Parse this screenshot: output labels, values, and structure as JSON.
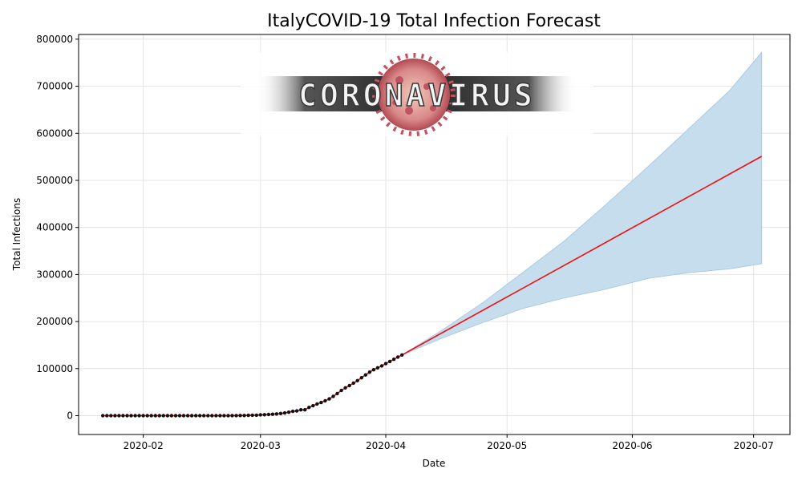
{
  "chart_data": {
    "type": "line",
    "title": "ItalyCOVID-19 Total Infection Forecast",
    "xlabel": "Date",
    "ylabel": "Total Infections",
    "x_range": [
      "2020-01-16",
      "2020-07-10"
    ],
    "ylim": [
      -40000,
      810000
    ],
    "x_ticks": [
      "2020-02-01",
      "2020-03-01",
      "2020-04-01",
      "2020-05-01",
      "2020-06-01",
      "2020-07-01"
    ],
    "x_tick_labels": [
      "2020-02",
      "2020-03",
      "2020-04",
      "2020-05",
      "2020-06",
      "2020-07"
    ],
    "y_ticks": [
      0,
      100000,
      200000,
      300000,
      400000,
      500000,
      600000,
      700000,
      800000
    ],
    "y_tick_labels": [
      "0",
      "100000",
      "200000",
      "300000",
      "400000",
      "500000",
      "600000",
      "700000",
      "800000"
    ],
    "grid": true,
    "observed": {
      "dates": [
        "2020-01-22",
        "2020-01-23",
        "2020-01-24",
        "2020-01-25",
        "2020-01-26",
        "2020-01-27",
        "2020-01-28",
        "2020-01-29",
        "2020-01-30",
        "2020-01-31",
        "2020-02-01",
        "2020-02-02",
        "2020-02-03",
        "2020-02-04",
        "2020-02-05",
        "2020-02-06",
        "2020-02-07",
        "2020-02-08",
        "2020-02-09",
        "2020-02-10",
        "2020-02-11",
        "2020-02-12",
        "2020-02-13",
        "2020-02-14",
        "2020-02-15",
        "2020-02-16",
        "2020-02-17",
        "2020-02-18",
        "2020-02-19",
        "2020-02-20",
        "2020-02-21",
        "2020-02-22",
        "2020-02-23",
        "2020-02-24",
        "2020-02-25",
        "2020-02-26",
        "2020-02-27",
        "2020-02-28",
        "2020-02-29",
        "2020-03-01",
        "2020-03-02",
        "2020-03-03",
        "2020-03-04",
        "2020-03-05",
        "2020-03-06",
        "2020-03-07",
        "2020-03-08",
        "2020-03-09",
        "2020-03-10",
        "2020-03-11",
        "2020-03-12",
        "2020-03-13",
        "2020-03-14",
        "2020-03-15",
        "2020-03-16",
        "2020-03-17",
        "2020-03-18",
        "2020-03-19",
        "2020-03-20",
        "2020-03-21",
        "2020-03-22",
        "2020-03-23",
        "2020-03-24",
        "2020-03-25",
        "2020-03-26",
        "2020-03-27",
        "2020-03-28",
        "2020-03-29",
        "2020-03-30",
        "2020-03-31",
        "2020-04-01",
        "2020-04-02",
        "2020-04-03",
        "2020-04-04",
        "2020-04-05"
      ],
      "values": [
        0,
        0,
        0,
        0,
        0,
        0,
        0,
        0,
        0,
        2,
        2,
        2,
        2,
        2,
        2,
        2,
        3,
        3,
        3,
        3,
        3,
        3,
        3,
        3,
        3,
        3,
        3,
        3,
        3,
        3,
        20,
        62,
        155,
        229,
        322,
        453,
        655,
        888,
        1128,
        1694,
        2036,
        2502,
        3089,
        3858,
        4636,
        5883,
        7375,
        9172,
        10149,
        12462,
        12462,
        17660,
        21157,
        24747,
        27980,
        31506,
        35713,
        41035,
        47021,
        53578,
        59138,
        63927,
        69176,
        74386,
        80589,
        86498,
        92472,
        97689,
        101739,
        105792,
        110574,
        115242,
        119827,
        124632,
        128948
      ]
    },
    "forecast": {
      "line": {
        "start": [
          "2020-04-05",
          128948
        ],
        "end": [
          "2020-07-03",
          551000
        ]
      },
      "band": {
        "dates": [
          "2020-04-05",
          "2020-04-15",
          "2020-04-25",
          "2020-05-05",
          "2020-05-15",
          "2020-05-25",
          "2020-06-05",
          "2020-06-15",
          "2020-06-25",
          "2020-07-03"
        ],
        "upper": [
          128948,
          182000,
          240000,
          305000,
          370000,
          445000,
          530000,
          610000,
          690000,
          772000
        ],
        "lower": [
          128948,
          165000,
          198000,
          228000,
          250000,
          268000,
          292000,
          304000,
          312000,
          323000
        ]
      }
    },
    "colors": {
      "forecast_line": "#ee1111",
      "band_fill": "#c6ddee",
      "band_edge": "#a9cbe4",
      "observed_marker": "#111111",
      "grid": "#e4e4e4",
      "axis": "#000000"
    },
    "logo_text": "CORONAVIRUS"
  }
}
